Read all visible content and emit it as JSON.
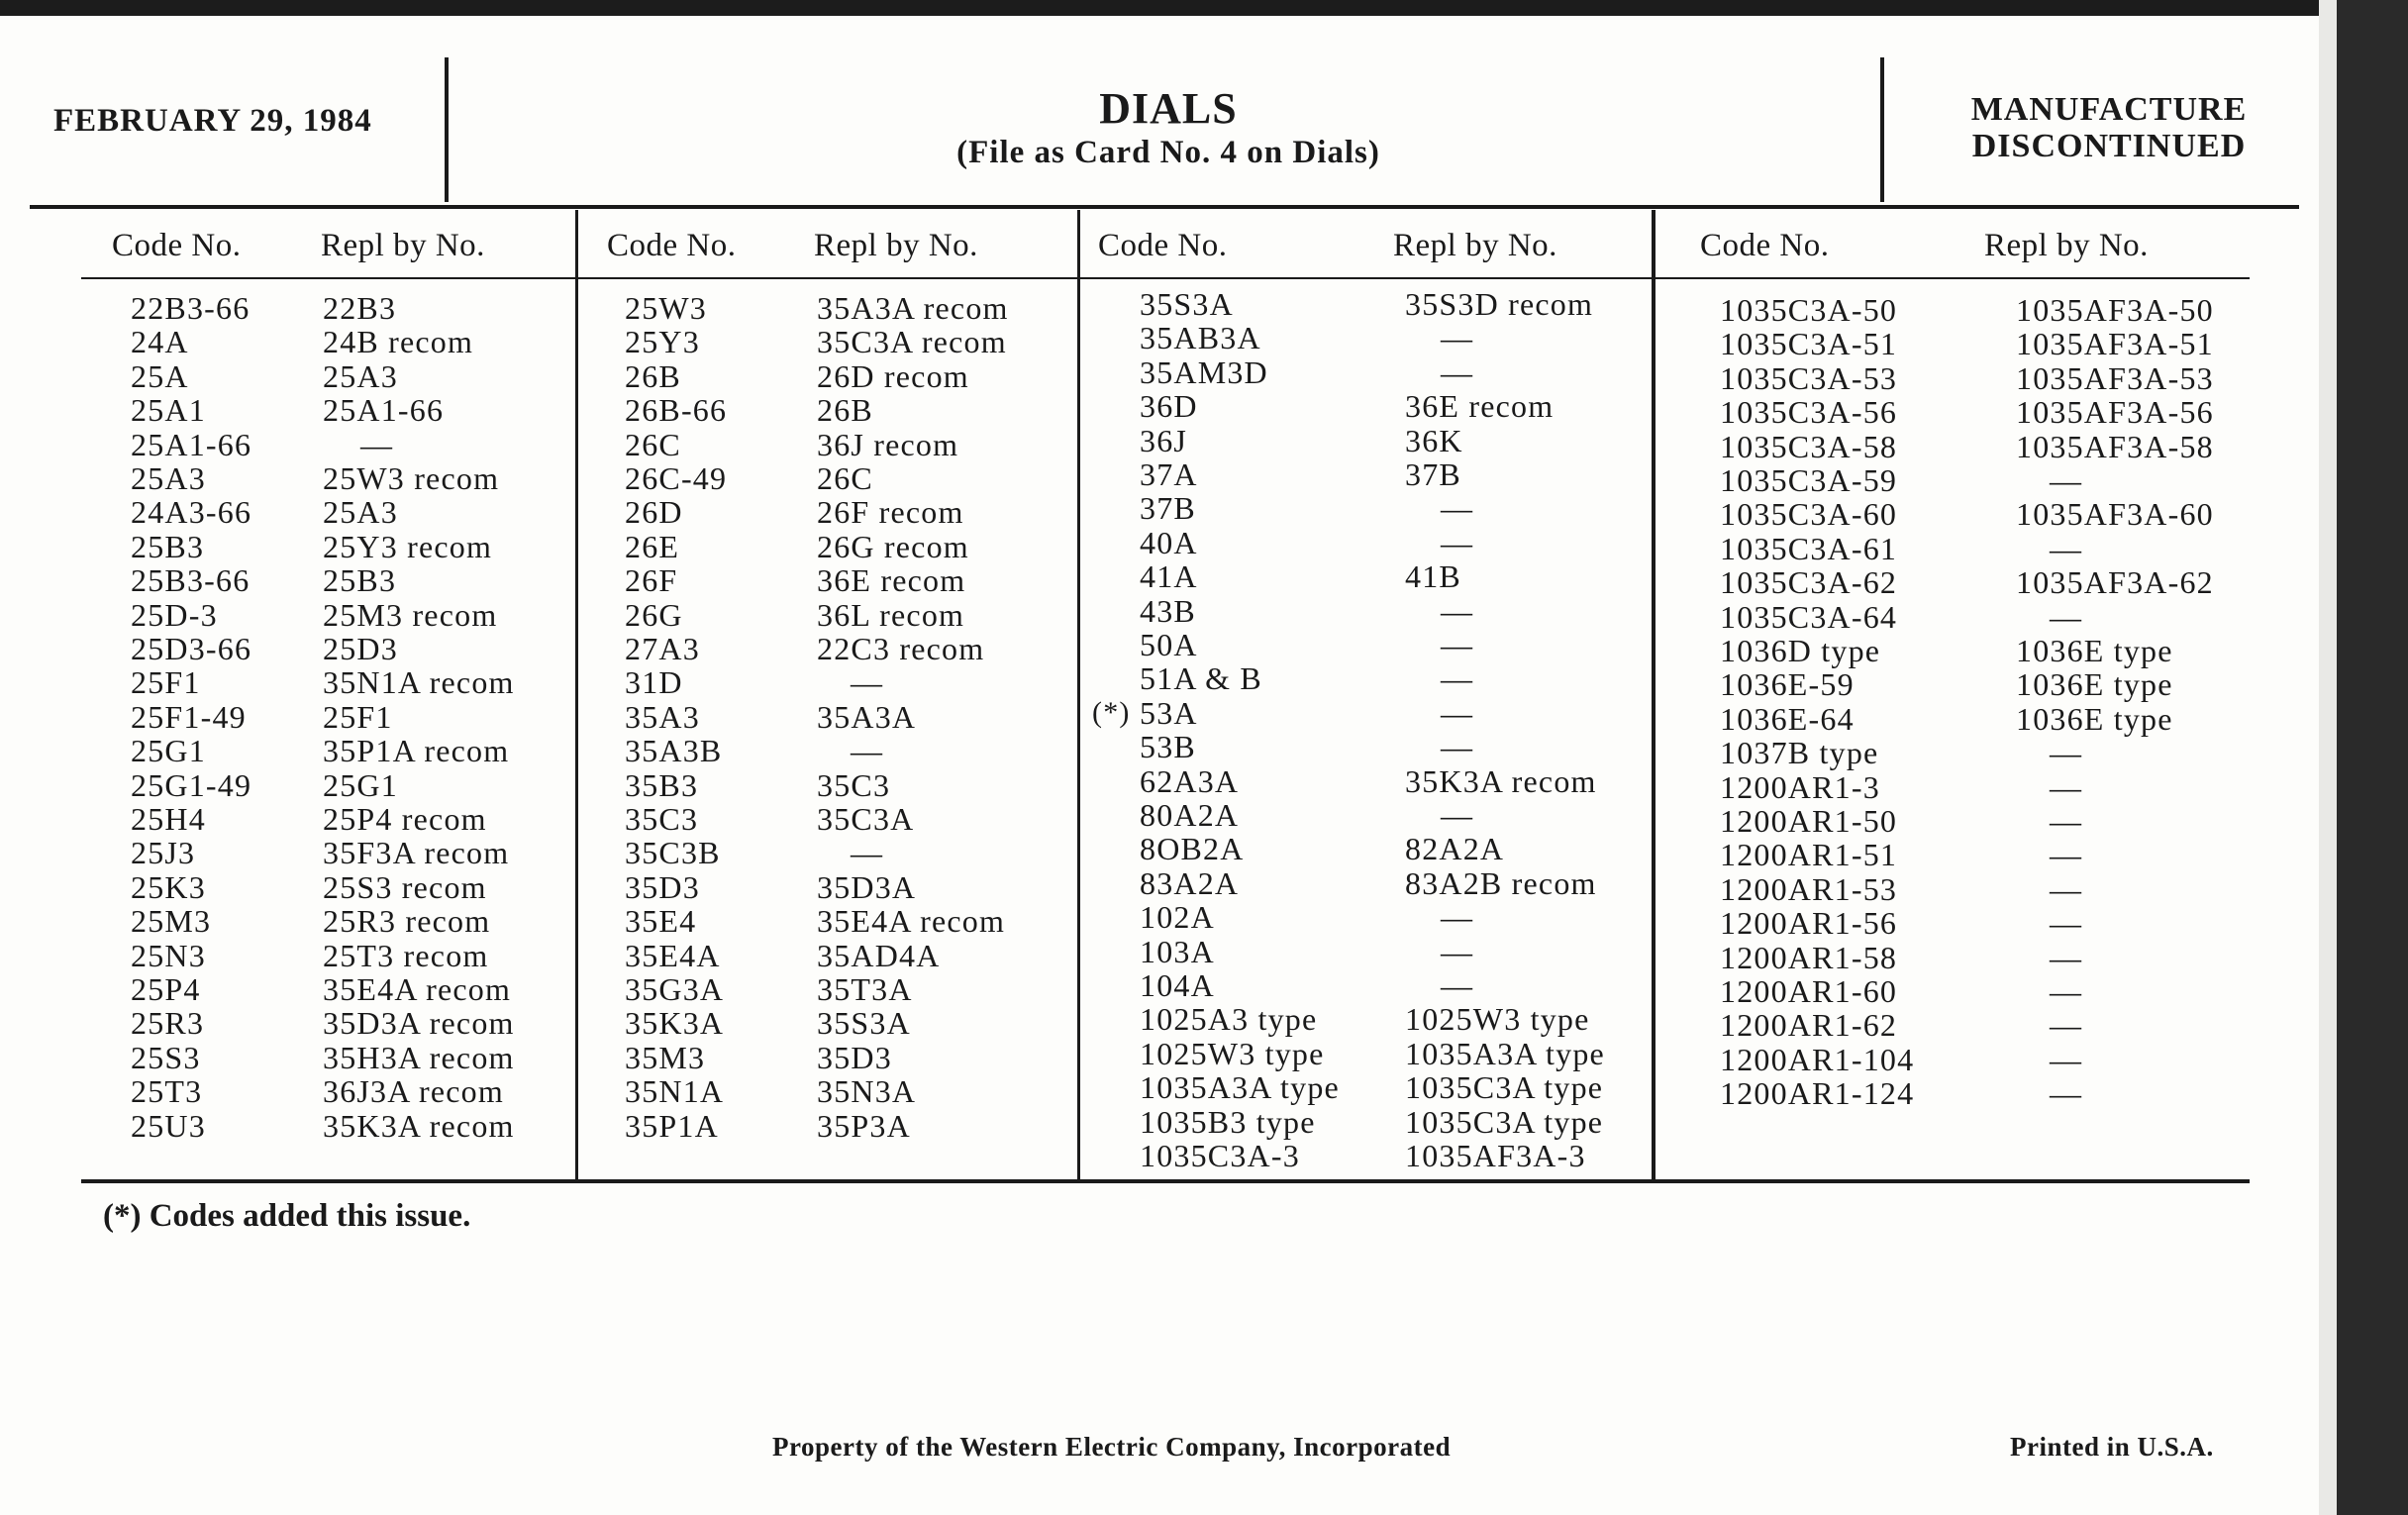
{
  "header": {
    "date": "FEBRUARY 29, 1984",
    "title": "DIALS",
    "subtitle": "(File as Card No. 4 on Dials)",
    "status_line1": "MANUFACTURE",
    "status_line2": "DISCONTINUED"
  },
  "column_headers": {
    "code": "Code No.",
    "repl": "Repl by No."
  },
  "columns": [
    {
      "rows": [
        {
          "code": "22B3-66",
          "repl": "22B3"
        },
        {
          "code": "24A",
          "repl": "24B recom"
        },
        {
          "code": "25A",
          "repl": "25A3"
        },
        {
          "code": "25A1",
          "repl": "25A1-66"
        },
        {
          "code": "25A1-66",
          "repl": "—"
        },
        {
          "code": "25A3",
          "repl": "25W3 recom"
        },
        {
          "code": "24A3-66",
          "repl": "25A3"
        },
        {
          "code": "25B3",
          "repl": "25Y3 recom"
        },
        {
          "code": "25B3-66",
          "repl": "25B3"
        },
        {
          "code": "25D-3",
          "repl": "25M3 recom"
        },
        {
          "code": "25D3-66",
          "repl": "25D3"
        },
        {
          "code": "25F1",
          "repl": "35N1A recom"
        },
        {
          "code": "25F1-49",
          "repl": "25F1"
        },
        {
          "code": "25G1",
          "repl": "35P1A recom"
        },
        {
          "code": "25G1-49",
          "repl": "25G1"
        },
        {
          "code": "25H4",
          "repl": "25P4 recom"
        },
        {
          "code": "25J3",
          "repl": "35F3A recom"
        },
        {
          "code": "25K3",
          "repl": "25S3 recom"
        },
        {
          "code": "25M3",
          "repl": "25R3 recom"
        },
        {
          "code": "25N3",
          "repl": "25T3 recom"
        },
        {
          "code": "25P4",
          "repl": "35E4A recom"
        },
        {
          "code": "25R3",
          "repl": "35D3A recom"
        },
        {
          "code": "25S3",
          "repl": "35H3A recom"
        },
        {
          "code": "25T3",
          "repl": "36J3A recom"
        },
        {
          "code": "25U3",
          "repl": "35K3A recom"
        }
      ]
    },
    {
      "rows": [
        {
          "code": "25W3",
          "repl": "35A3A recom"
        },
        {
          "code": "25Y3",
          "repl": "35C3A recom"
        },
        {
          "code": "26B",
          "repl": "26D recom"
        },
        {
          "code": "26B-66",
          "repl": "26B"
        },
        {
          "code": "26C",
          "repl": "36J recom"
        },
        {
          "code": "26C-49",
          "repl": "26C"
        },
        {
          "code": "26D",
          "repl": "26F recom"
        },
        {
          "code": "26E",
          "repl": "26G recom"
        },
        {
          "code": "26F",
          "repl": "36E recom"
        },
        {
          "code": "26G",
          "repl": "36L recom"
        },
        {
          "code": "27A3",
          "repl": "22C3 recom"
        },
        {
          "code": "31D",
          "repl": "—"
        },
        {
          "code": "35A3",
          "repl": "35A3A"
        },
        {
          "code": "35A3B",
          "repl": "—"
        },
        {
          "code": "35B3",
          "repl": "35C3"
        },
        {
          "code": "35C3",
          "repl": "35C3A"
        },
        {
          "code": "35C3B",
          "repl": "—"
        },
        {
          "code": "35D3",
          "repl": "35D3A"
        },
        {
          "code": "35E4",
          "repl": "35E4A recom"
        },
        {
          "code": "35E4A",
          "repl": "35AD4A"
        },
        {
          "code": "35G3A",
          "repl": "35T3A"
        },
        {
          "code": "35K3A",
          "repl": "35S3A"
        },
        {
          "code": "35M3",
          "repl": "35D3"
        },
        {
          "code": "35N1A",
          "repl": "35N3A"
        },
        {
          "code": "35P1A",
          "repl": "35P3A"
        }
      ]
    },
    {
      "rows": [
        {
          "code": "35S3A",
          "repl": "35S3D recom"
        },
        {
          "code": "35AB3A",
          "repl": "—"
        },
        {
          "code": "35AM3D",
          "repl": "—"
        },
        {
          "code": "36D",
          "repl": "36E recom"
        },
        {
          "code": "36J",
          "repl": "36K"
        },
        {
          "code": "37A",
          "repl": "37B"
        },
        {
          "code": "37B",
          "repl": "—"
        },
        {
          "code": "40A",
          "repl": "—"
        },
        {
          "code": "41A",
          "repl": "41B"
        },
        {
          "code": "43B",
          "repl": "—"
        },
        {
          "code": "50A",
          "repl": "—"
        },
        {
          "code": "51A & B",
          "repl": "—"
        },
        {
          "code": "53A",
          "repl": "—",
          "marker": "(*)"
        },
        {
          "code": "53B",
          "repl": "—"
        },
        {
          "code": "62A3A",
          "repl": "35K3A recom"
        },
        {
          "code": "80A2A",
          "repl": "—"
        },
        {
          "code": "8OB2A",
          "repl": "82A2A"
        },
        {
          "code": "83A2A",
          "repl": "83A2B recom"
        },
        {
          "code": "102A",
          "repl": "—"
        },
        {
          "code": "103A",
          "repl": "—"
        },
        {
          "code": "104A",
          "repl": "—"
        },
        {
          "code": "1025A3 type",
          "repl": "1025W3 type"
        },
        {
          "code": "1025W3 type",
          "repl": "1035A3A type"
        },
        {
          "code": "1035A3A type",
          "repl": "1035C3A type"
        },
        {
          "code": "1035B3 type",
          "repl": "1035C3A type"
        },
        {
          "code": "1035C3A-3",
          "repl": "1035AF3A-3"
        }
      ]
    },
    {
      "rows": [
        {
          "code": "1035C3A-50",
          "repl": "1035AF3A-50"
        },
        {
          "code": "1035C3A-51",
          "repl": "1035AF3A-51"
        },
        {
          "code": "1035C3A-53",
          "repl": "1035AF3A-53"
        },
        {
          "code": "1035C3A-56",
          "repl": "1035AF3A-56"
        },
        {
          "code": "1035C3A-58",
          "repl": "1035AF3A-58"
        },
        {
          "code": "1035C3A-59",
          "repl": "—"
        },
        {
          "code": "1035C3A-60",
          "repl": "1035AF3A-60"
        },
        {
          "code": "1035C3A-61",
          "repl": "—"
        },
        {
          "code": "1035C3A-62",
          "repl": "1035AF3A-62"
        },
        {
          "code": "1035C3A-64",
          "repl": "—"
        },
        {
          "code": "1036D type",
          "repl": "1036E type"
        },
        {
          "code": "1036E-59",
          "repl": "1036E type"
        },
        {
          "code": "1036E-64",
          "repl": "1036E type"
        },
        {
          "code": "1037B type",
          "repl": "—"
        },
        {
          "code": "1200AR1-3",
          "repl": "—"
        },
        {
          "code": "1200AR1-50",
          "repl": "—"
        },
        {
          "code": "1200AR1-51",
          "repl": "—"
        },
        {
          "code": "1200AR1-53",
          "repl": "—"
        },
        {
          "code": "1200AR1-56",
          "repl": "—"
        },
        {
          "code": "1200AR1-58",
          "repl": "—"
        },
        {
          "code": "1200AR1-60",
          "repl": "—"
        },
        {
          "code": "1200AR1-62",
          "repl": "—"
        },
        {
          "code": "1200AR1-104",
          "repl": "—"
        },
        {
          "code": "1200AR1-124",
          "repl": "—"
        }
      ]
    }
  ],
  "footnote": "(*)  Codes added this issue.",
  "footer": {
    "property": "Property of the Western Electric Company, Incorporated",
    "printed": "Printed in U.S.A."
  }
}
